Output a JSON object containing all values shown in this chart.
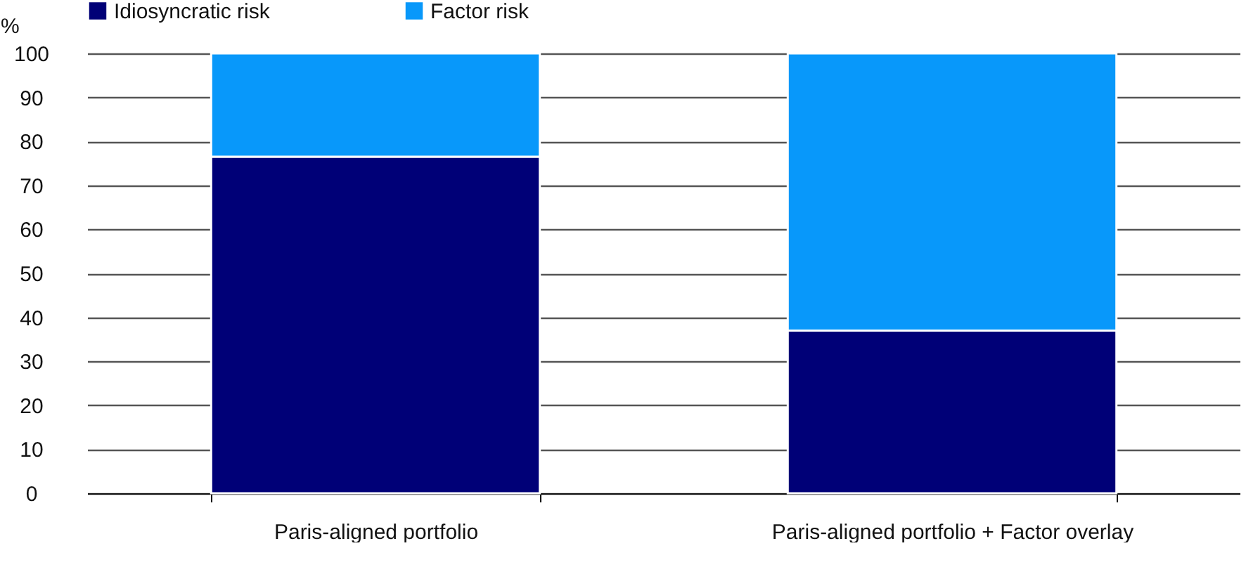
{
  "chart_data": {
    "type": "bar",
    "stacked": true,
    "ylabel": "%",
    "categories": [
      "Paris-aligned portfolio",
      "Paris-aligned portfolio + Factor overlay"
    ],
    "series": [
      {
        "name": "Idiosyncratic risk",
        "color": "#000077",
        "values": [
          76.5,
          37
        ]
      },
      {
        "name": "Factor risk",
        "color": "#0898fa",
        "values": [
          23.5,
          63
        ]
      }
    ],
    "ylim": [
      0,
      100
    ],
    "yticks": [
      0,
      10,
      20,
      30,
      40,
      50,
      60,
      70,
      80,
      90,
      100
    ],
    "grid": "y",
    "legend": "top left"
  }
}
